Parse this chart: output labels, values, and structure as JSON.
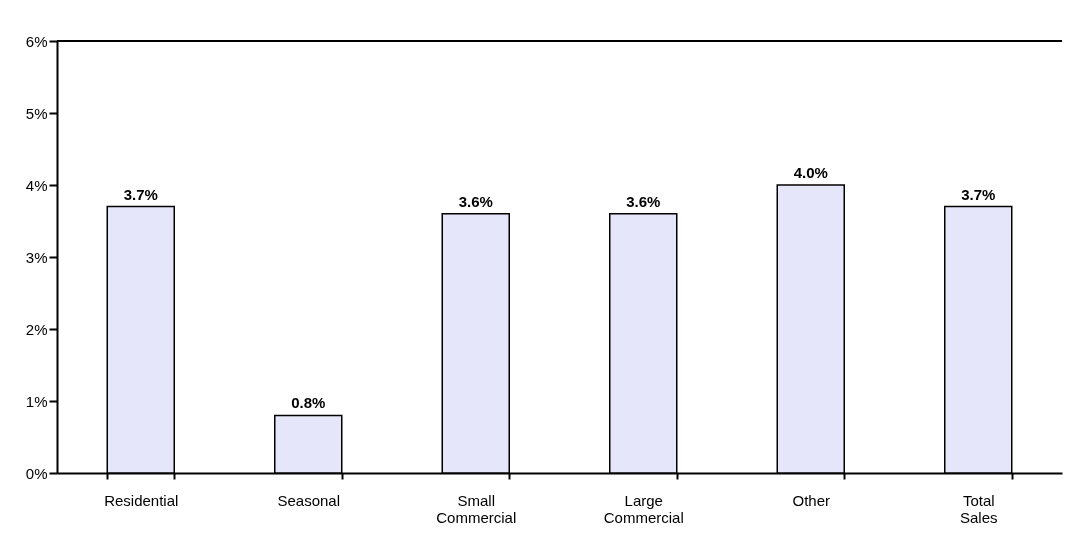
{
  "chart_data": {
    "type": "bar",
    "categories": [
      "Residential",
      "Seasonal",
      "Small Commercial",
      "Large Commercial",
      "Other",
      "Total Sales"
    ],
    "values": [
      3.7,
      0.8,
      3.6,
      3.6,
      4.0,
      3.7
    ],
    "value_labels": [
      "3.7%",
      "0.8%",
      "3.6%",
      "3.6%",
      "4.0%",
      "3.7%"
    ],
    "color": "#e6e6fa",
    "ylim": [
      0,
      6
    ],
    "yticks": [
      {
        "value": 0,
        "label": "0%"
      },
      {
        "value": 1,
        "label": "1%"
      },
      {
        "value": 2,
        "label": "2%"
      },
      {
        "value": 3,
        "label": "3%"
      },
      {
        "value": 4,
        "label": "4%"
      },
      {
        "value": 5,
        "label": "5%"
      },
      {
        "value": 6,
        "label": "6%"
      }
    ],
    "grid": false
  }
}
